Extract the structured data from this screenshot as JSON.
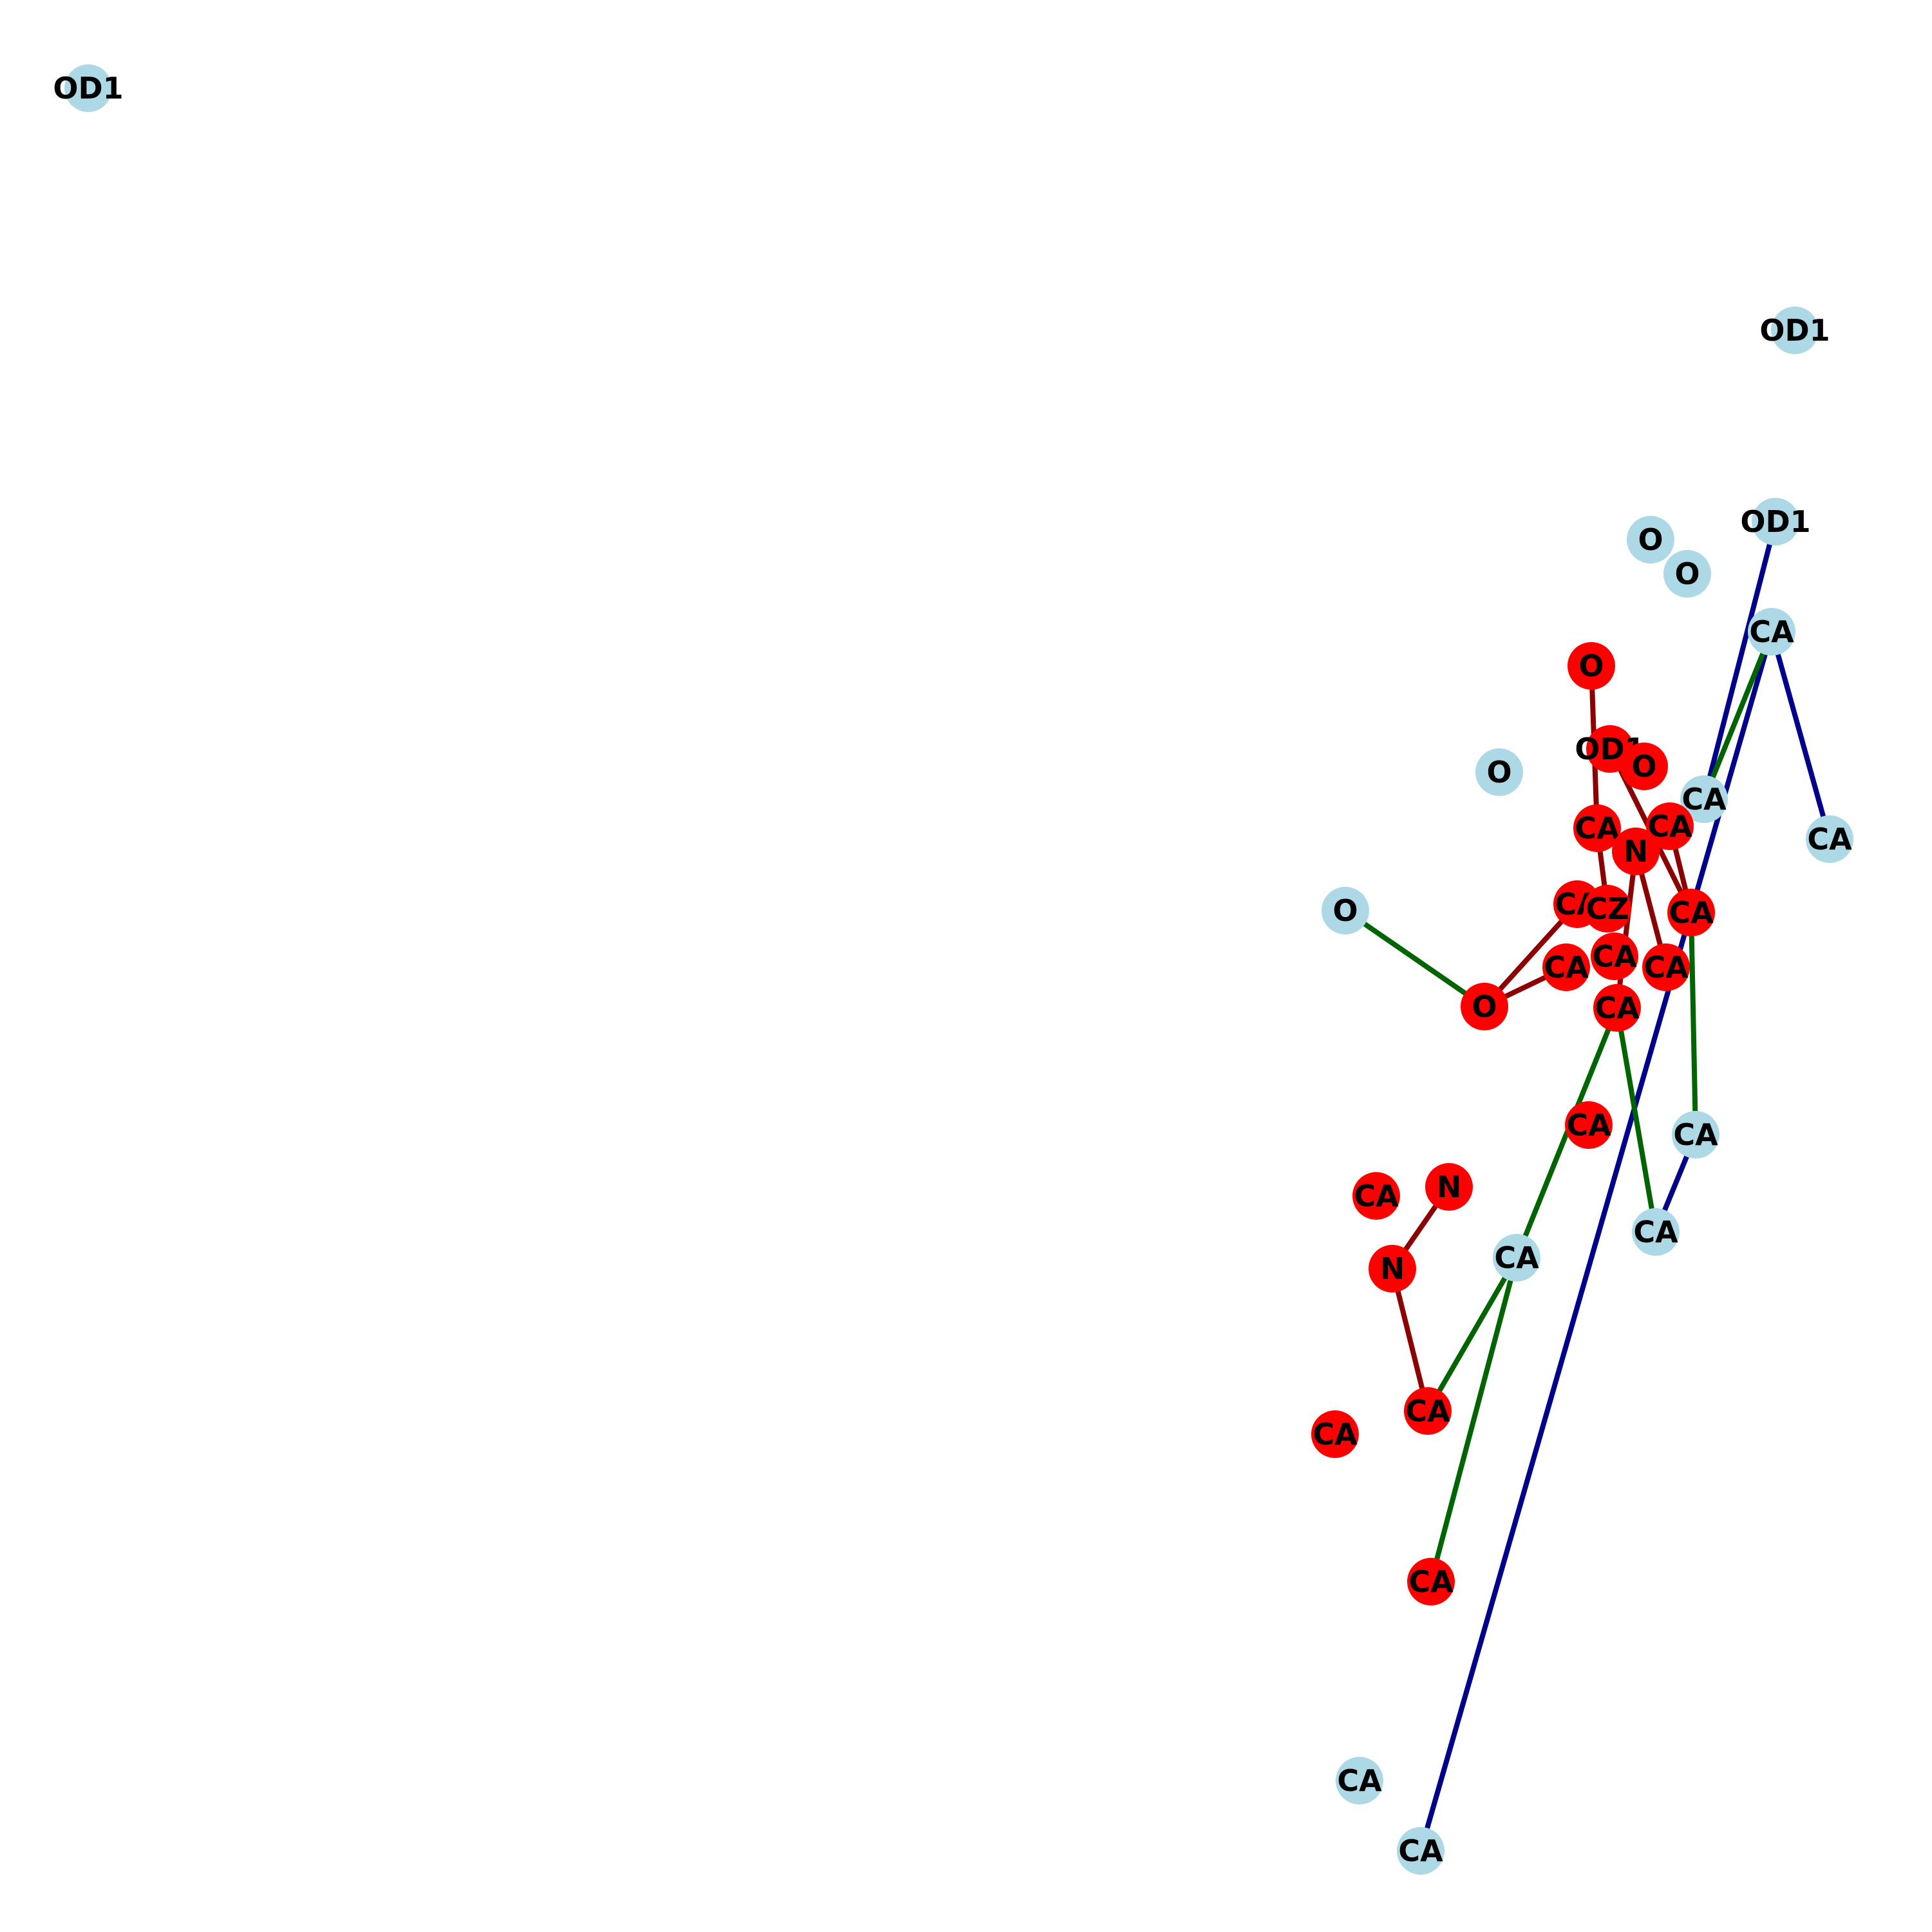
{
  "colors": {
    "node_light": "#add8e6",
    "node_red": "#ff0000",
    "edge_darkred": "#8b0000",
    "edge_green": "#006400",
    "edge_blue": "#00008b"
  },
  "nodes": [
    {
      "id": "n0",
      "label": "OD1",
      "group": "light"
    },
    {
      "id": "n1",
      "label": "OD1",
      "group": "light"
    },
    {
      "id": "n2",
      "label": "OD1",
      "group": "light"
    },
    {
      "id": "n3",
      "label": "O",
      "group": "light"
    },
    {
      "id": "n4",
      "label": "O",
      "group": "light"
    },
    {
      "id": "n5",
      "label": "CA",
      "group": "light"
    },
    {
      "id": "n6",
      "label": "O",
      "group": "light"
    },
    {
      "id": "n7",
      "label": "CA",
      "group": "light"
    },
    {
      "id": "n8",
      "label": "CA",
      "group": "light"
    },
    {
      "id": "n9",
      "label": "O",
      "group": "light"
    },
    {
      "id": "n10",
      "label": "CA",
      "group": "light"
    },
    {
      "id": "n11",
      "label": "CA",
      "group": "light"
    },
    {
      "id": "n12",
      "label": "CA",
      "group": "light"
    },
    {
      "id": "n13",
      "label": "CA",
      "group": "light"
    },
    {
      "id": "n14",
      "label": "CA",
      "group": "light"
    },
    {
      "id": "n15",
      "label": "O",
      "group": "red"
    },
    {
      "id": "n16",
      "label": "OD1",
      "group": "red"
    },
    {
      "id": "n17",
      "label": "O",
      "group": "red"
    },
    {
      "id": "n18",
      "label": "CA",
      "group": "red"
    },
    {
      "id": "n19",
      "label": "CA",
      "group": "red"
    },
    {
      "id": "n20",
      "label": "N",
      "group": "red"
    },
    {
      "id": "n21",
      "label": "CA",
      "group": "red"
    },
    {
      "id": "n22",
      "label": "CA",
      "group": "red"
    },
    {
      "id": "n23",
      "label": "CZ",
      "group": "red"
    },
    {
      "id": "n24",
      "label": "CA",
      "group": "red"
    },
    {
      "id": "n25",
      "label": "CA",
      "group": "red"
    },
    {
      "id": "n26",
      "label": "CA",
      "group": "red"
    },
    {
      "id": "n27",
      "label": "O",
      "group": "red"
    },
    {
      "id": "n28",
      "label": "CA",
      "group": "red"
    },
    {
      "id": "n29",
      "label": "CA",
      "group": "red"
    },
    {
      "id": "n30",
      "label": "N",
      "group": "red"
    },
    {
      "id": "n31",
      "label": "CA",
      "group": "red"
    },
    {
      "id": "n32",
      "label": "N",
      "group": "red"
    },
    {
      "id": "n33",
      "label": "CA",
      "group": "red"
    },
    {
      "id": "n34",
      "label": "CA",
      "group": "red"
    },
    {
      "id": "n35",
      "label": "CA",
      "group": "red"
    }
  ],
  "edges": [
    {
      "from": "n2",
      "to": "n7",
      "color": "edge_blue"
    },
    {
      "from": "n5",
      "to": "n14",
      "color": "edge_blue"
    },
    {
      "from": "n5",
      "to": "n8",
      "color": "edge_blue"
    },
    {
      "from": "n10",
      "to": "n11",
      "color": "edge_blue"
    },
    {
      "from": "n5",
      "to": "n7",
      "color": "edge_green"
    },
    {
      "from": "n9",
      "to": "n27",
      "color": "edge_green"
    },
    {
      "from": "n21",
      "to": "n10",
      "color": "edge_green"
    },
    {
      "from": "n28",
      "to": "n11",
      "color": "edge_green"
    },
    {
      "from": "n28",
      "to": "n12",
      "color": "edge_green"
    },
    {
      "from": "n12",
      "to": "n33",
      "color": "edge_green"
    },
    {
      "from": "n12",
      "to": "n35",
      "color": "edge_green"
    },
    {
      "from": "n15",
      "to": "n18",
      "color": "edge_darkred"
    },
    {
      "from": "n18",
      "to": "n23",
      "color": "edge_darkred"
    },
    {
      "from": "n16",
      "to": "n21",
      "color": "edge_darkred"
    },
    {
      "from": "n19",
      "to": "n21",
      "color": "edge_darkred"
    },
    {
      "from": "n20",
      "to": "n26",
      "color": "edge_darkred"
    },
    {
      "from": "n20",
      "to": "n28",
      "color": "edge_darkred"
    },
    {
      "from": "n22",
      "to": "n27",
      "color": "edge_darkred"
    },
    {
      "from": "n27",
      "to": "n24",
      "color": "edge_darkred"
    },
    {
      "from": "n30",
      "to": "n32",
      "color": "edge_darkred"
    },
    {
      "from": "n32",
      "to": "n33",
      "color": "edge_darkred"
    }
  ]
}
